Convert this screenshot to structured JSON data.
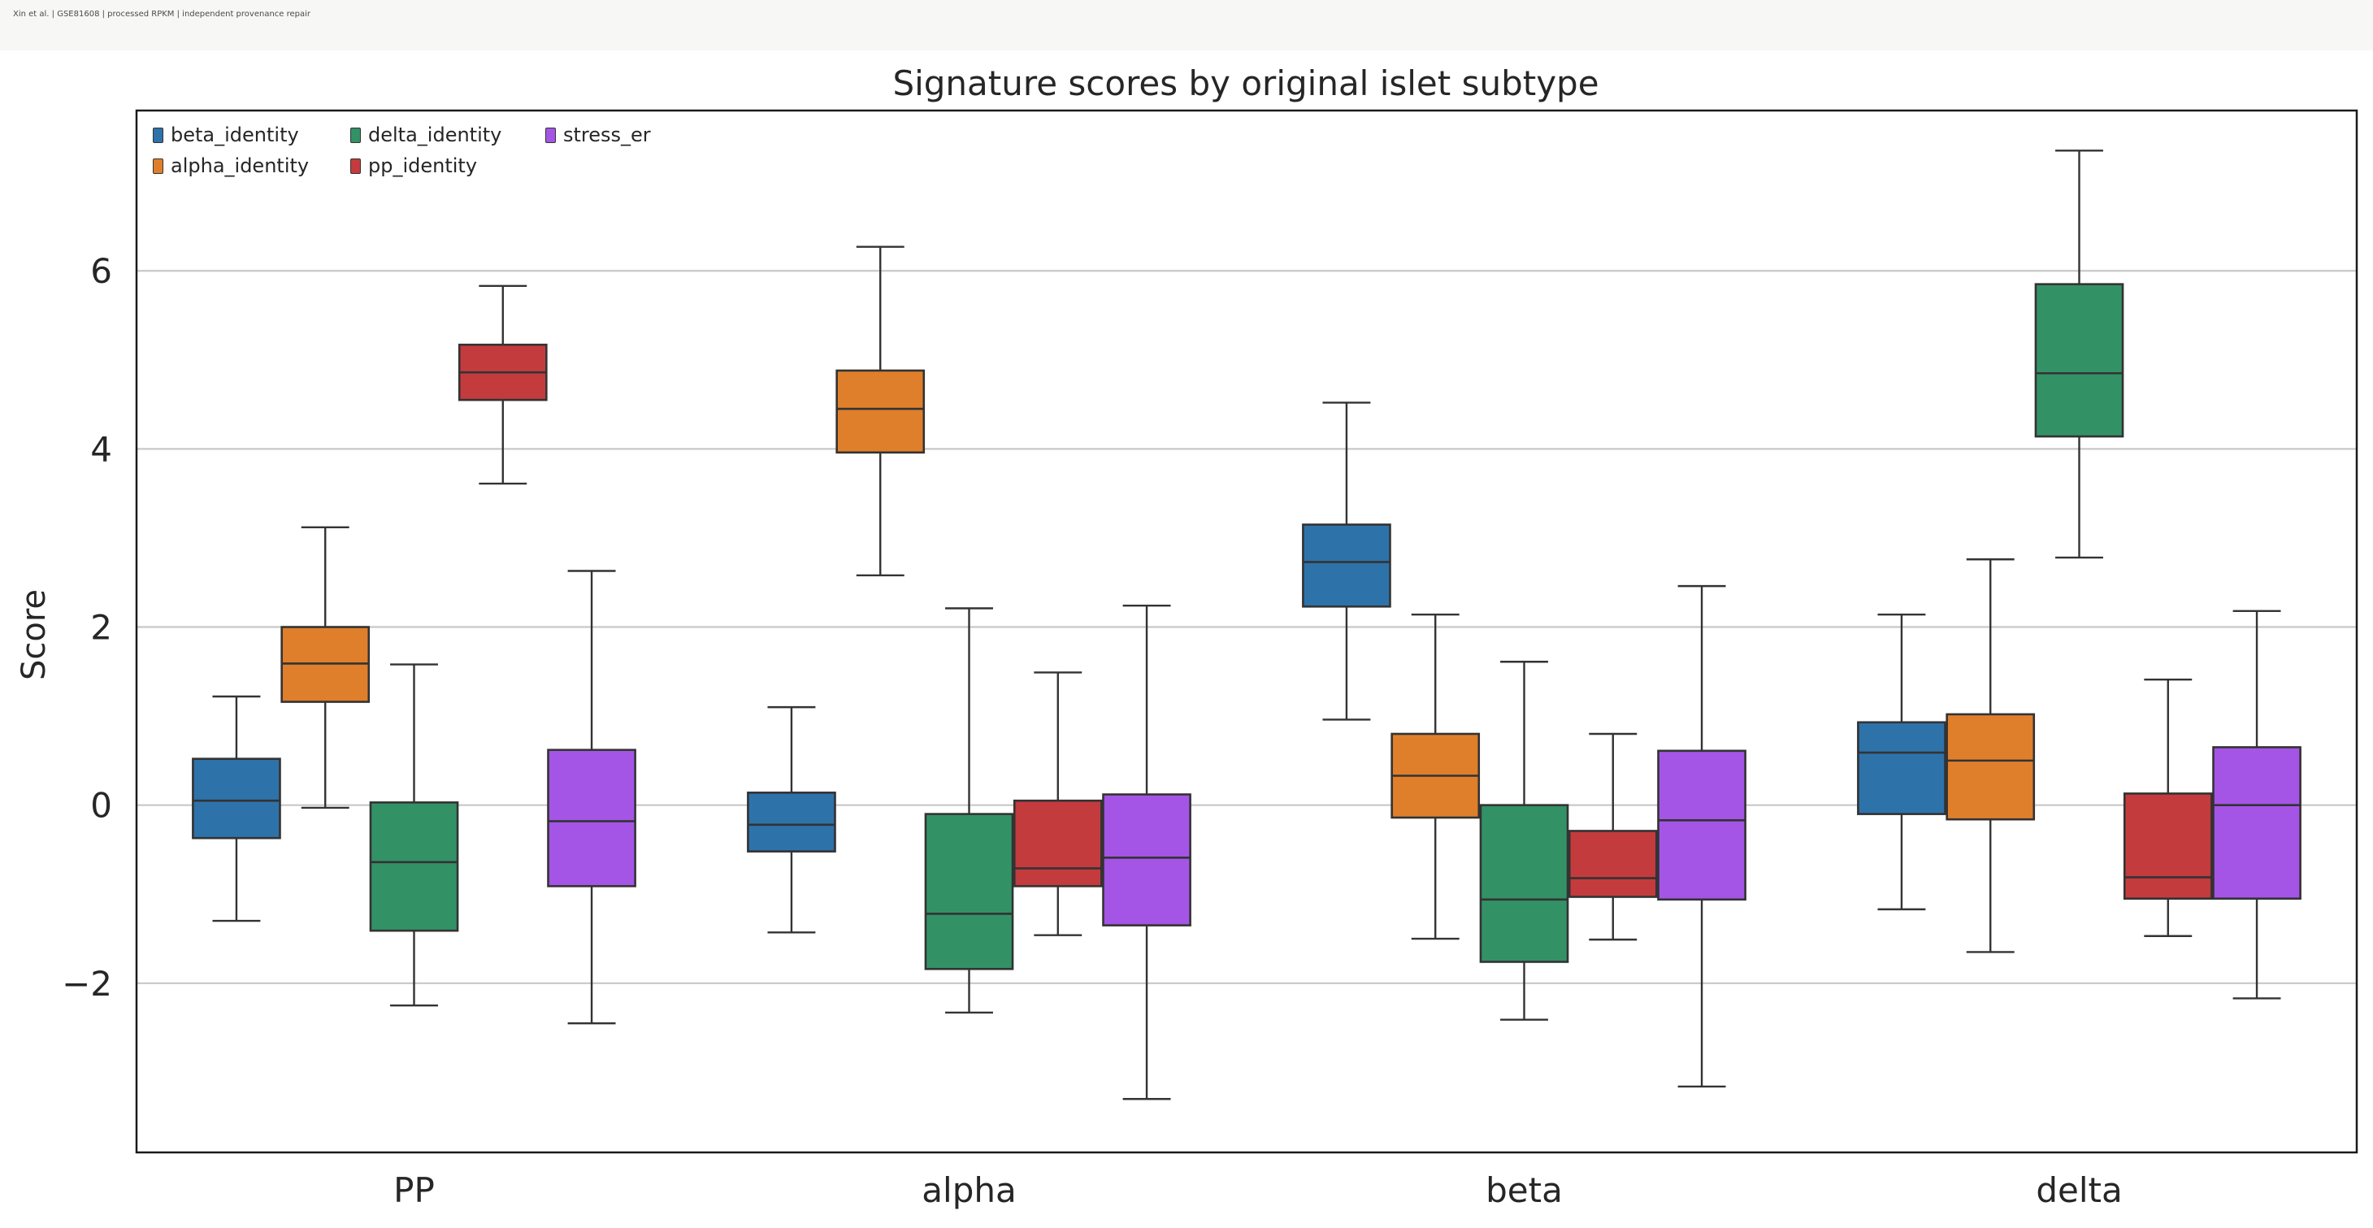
{
  "header": {
    "caption": "Xin et al. | GSE81608 | processed RPKM | independent provenance repair"
  },
  "chart_data": {
    "type": "box",
    "title": "Signature scores by original islet subtype",
    "xlabel": "",
    "ylabel": "Score",
    "ylim": [
      -3.9,
      7.8
    ],
    "yticks": [
      -2,
      0,
      2,
      4,
      6
    ],
    "ytick_labels": [
      "−2",
      "0",
      "2",
      "4",
      "6"
    ],
    "grid": "horizontal",
    "legend_position": "top-left",
    "categories": [
      "PP",
      "alpha",
      "beta",
      "delta"
    ],
    "series": [
      {
        "name": "beta_identity",
        "color": "#2e72aa",
        "boxes": [
          {
            "whisker_low": -1.3,
            "q1": -0.37,
            "median": 0.05,
            "q3": 0.52,
            "whisker_high": 1.22
          },
          {
            "whisker_low": -1.43,
            "q1": -0.52,
            "median": -0.22,
            "q3": 0.14,
            "whisker_high": 1.1
          },
          {
            "whisker_low": 0.96,
            "q1": 2.23,
            "median": 2.73,
            "q3": 3.15,
            "whisker_high": 4.52
          },
          {
            "whisker_low": -1.17,
            "q1": -0.1,
            "median": 0.59,
            "q3": 0.93,
            "whisker_high": 2.14
          }
        ]
      },
      {
        "name": "alpha_identity",
        "color": "#e07f2b",
        "boxes": [
          {
            "whisker_low": -0.03,
            "q1": 1.16,
            "median": 1.59,
            "q3": 2.0,
            "whisker_high": 3.12
          },
          {
            "whisker_low": 2.58,
            "q1": 3.96,
            "median": 4.45,
            "q3": 4.88,
            "whisker_high": 6.27
          },
          {
            "whisker_low": -1.5,
            "q1": -0.14,
            "median": 0.33,
            "q3": 0.8,
            "whisker_high": 2.14
          },
          {
            "whisker_low": -1.65,
            "q1": -0.16,
            "median": 0.5,
            "q3": 1.02,
            "whisker_high": 2.76
          }
        ]
      },
      {
        "name": "delta_identity",
        "color": "#339166",
        "boxes": [
          {
            "whisker_low": -2.25,
            "q1": -1.41,
            "median": -0.64,
            "q3": 0.03,
            "whisker_high": 1.58
          },
          {
            "whisker_low": -2.33,
            "q1": -1.84,
            "median": -1.22,
            "q3": -0.1,
            "whisker_high": 2.21
          },
          {
            "whisker_low": -2.41,
            "q1": -1.76,
            "median": -1.06,
            "q3": 0.0,
            "whisker_high": 1.61
          },
          {
            "whisker_low": 2.78,
            "q1": 4.14,
            "median": 4.85,
            "q3": 5.85,
            "whisker_high": 7.35
          }
        ]
      },
      {
        "name": "pp_identity",
        "color": "#c43b3e",
        "boxes": [
          {
            "whisker_low": 3.61,
            "q1": 4.55,
            "median": 4.86,
            "q3": 5.17,
            "whisker_high": 5.83
          },
          {
            "whisker_low": -1.46,
            "q1": -0.91,
            "median": -0.71,
            "q3": 0.05,
            "whisker_high": 1.49
          },
          {
            "whisker_low": -1.51,
            "q1": -1.03,
            "median": -0.82,
            "q3": -0.29,
            "whisker_high": 0.8
          },
          {
            "whisker_low": -1.47,
            "q1": -1.05,
            "median": -0.81,
            "q3": 0.13,
            "whisker_high": 1.41
          }
        ]
      },
      {
        "name": "stress_er",
        "color": "#a555e5",
        "boxes": [
          {
            "whisker_low": -2.45,
            "q1": -0.91,
            "median": -0.18,
            "q3": 0.62,
            "whisker_high": 2.63
          },
          {
            "whisker_low": -3.3,
            "q1": -1.35,
            "median": -0.59,
            "q3": 0.12,
            "whisker_high": 2.24
          },
          {
            "whisker_low": -3.16,
            "q1": -1.06,
            "median": -0.17,
            "q3": 0.61,
            "whisker_high": 2.46
          },
          {
            "whisker_low": -2.17,
            "q1": -1.05,
            "median": 0.0,
            "q3": 0.65,
            "whisker_high": 2.18
          }
        ]
      }
    ]
  }
}
